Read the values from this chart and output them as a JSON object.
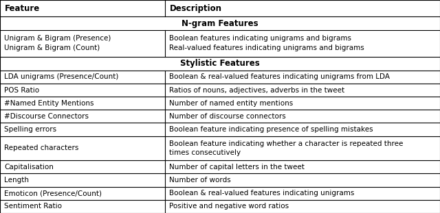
{
  "col_split": 0.375,
  "header": [
    "Feature",
    "Description"
  ],
  "ngram_section": "N-gram Features",
  "stylistic_section": "Stylistic Features",
  "stylistic_rows": [
    [
      "LDA unigrams (Presence/Count)",
      "Boolean & real-valued features indicating unigrams from LDA"
    ],
    [
      "POS Ratio",
      "Ratios of nouns, adjectives, adverbs in the tweet"
    ],
    [
      "#Named Entity Mentions",
      "Number of named entity mentions"
    ],
    [
      "#Discourse Connectors",
      "Number of discourse connectors"
    ],
    [
      "Spelling errors",
      "Boolean feature indicating presence of spelling mistakes"
    ],
    [
      "Repeated characters",
      "Boolean feature indicating whether a character is repeated three\ntimes consecutively"
    ],
    [
      "Capitalisation",
      "Number of capital letters in the tweet"
    ],
    [
      "Length",
      "Number of words"
    ],
    [
      "Emoticon (Presence/Count)",
      "Boolean & real-valued features indicating unigrams"
    ],
    [
      "Sentiment Ratio",
      "Positive and negative word ratios"
    ]
  ],
  "bg_color": "#ffffff",
  "border_color": "#000000",
  "text_color": "#000000",
  "font_size": 7.5,
  "header_font_size": 8.5,
  "section_font_size": 8.5
}
